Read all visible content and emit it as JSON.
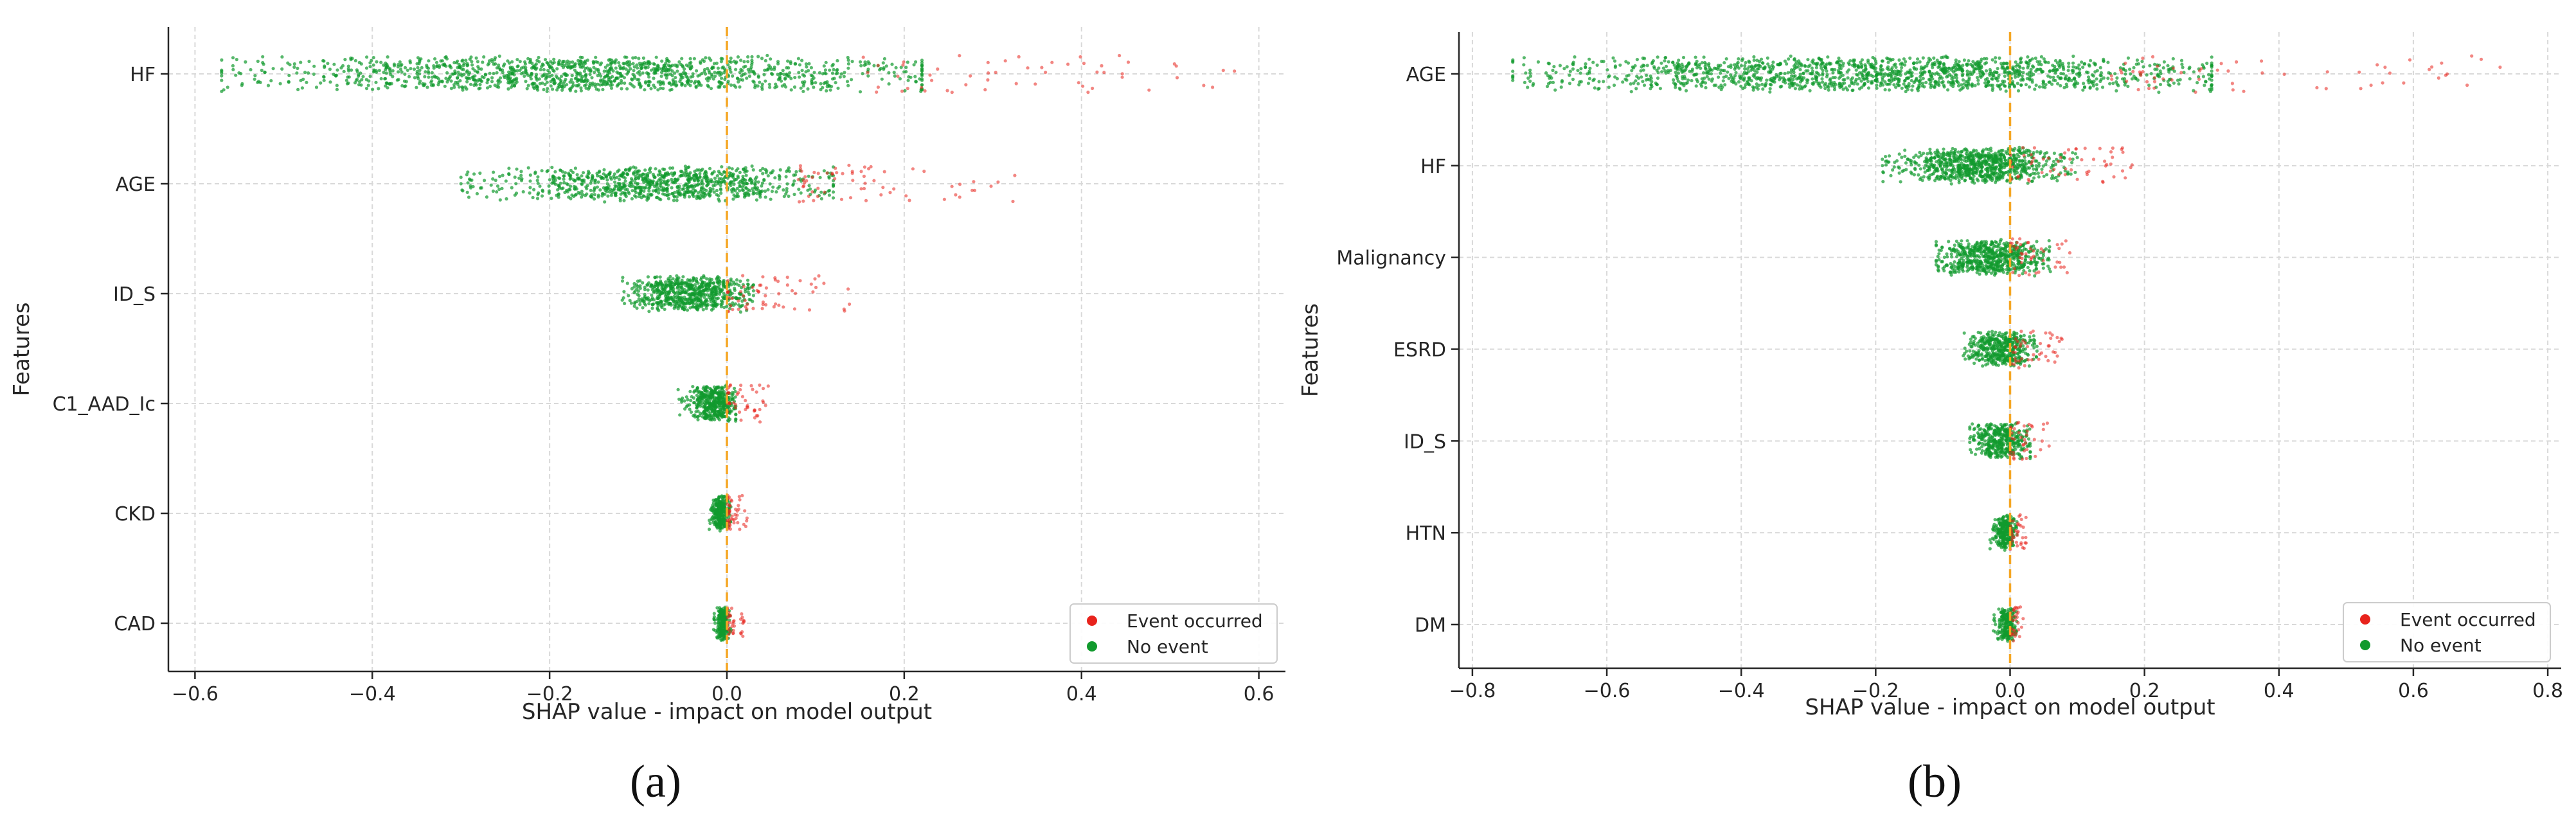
{
  "chart_data": [
    {
      "type": "scatter",
      "subtype": "shap-beeswarm",
      "panel_label": "(a)",
      "xlabel": "SHAP value - impact on model output",
      "ylabel": "Features",
      "xlim": [
        -0.63,
        0.63
      ],
      "xticks": [
        -0.6,
        -0.4,
        -0.2,
        0.0,
        0.2,
        0.4,
        0.6
      ],
      "xtick_labels": [
        "−0.6",
        "−0.4",
        "−0.2",
        "0.0",
        "0.2",
        "0.4",
        "0.6"
      ],
      "grid": true,
      "zero_line": true,
      "legend_position": "bottom-right",
      "legend": [
        {
          "label": "Event occurred",
          "color": "#e8231c"
        },
        {
          "label": "No event",
          "color": "#119a2d"
        }
      ],
      "features": [
        {
          "name": "HF",
          "green_range": [
            -0.57,
            0.22
          ],
          "green_core": [
            -0.45,
            0.13
          ],
          "red_range": [
            0.15,
            0.59
          ]
        },
        {
          "name": "AGE",
          "green_range": [
            -0.3,
            0.12
          ],
          "green_core": [
            -0.22,
            0.06
          ],
          "red_range": [
            0.08,
            0.33
          ]
        },
        {
          "name": "ID_S",
          "green_range": [
            -0.12,
            0.03
          ],
          "green_core": [
            -0.09,
            0.01
          ],
          "red_range": [
            0.0,
            0.14
          ]
        },
        {
          "name": "C1_AAD_Ic",
          "green_range": [
            -0.055,
            0.01
          ],
          "green_core": [
            -0.035,
            0.005
          ],
          "red_range": [
            0.0,
            0.05
          ]
        },
        {
          "name": "CKD",
          "green_range": [
            -0.02,
            0.005
          ],
          "green_core": [
            -0.015,
            0.0
          ],
          "red_range": [
            0.0,
            0.025
          ]
        },
        {
          "name": "CAD",
          "green_range": [
            -0.015,
            0.005
          ],
          "green_core": [
            -0.01,
            0.0
          ],
          "red_range": [
            0.0,
            0.02
          ]
        }
      ]
    },
    {
      "type": "scatter",
      "subtype": "shap-beeswarm",
      "panel_label": "(b)",
      "xlabel": "SHAP value - impact on model output",
      "ylabel": "Features",
      "xlim": [
        -0.82,
        0.82
      ],
      "xticks": [
        -0.8,
        -0.6,
        -0.4,
        -0.2,
        0.0,
        0.2,
        0.4,
        0.6,
        0.8
      ],
      "xtick_labels": [
        "−0.8",
        "−0.6",
        "−0.4",
        "−0.2",
        "0.0",
        "0.2",
        "0.4",
        "0.6",
        "0.8"
      ],
      "grid": true,
      "zero_line": true,
      "legend_position": "bottom-right",
      "legend": [
        {
          "label": "Event occurred",
          "color": "#e8231c"
        },
        {
          "label": "No event",
          "color": "#119a2d"
        }
      ],
      "features": [
        {
          "name": "AGE",
          "green_range": [
            -0.74,
            0.3
          ],
          "green_core": [
            -0.58,
            0.18
          ],
          "red_range": [
            0.15,
            0.75
          ]
        },
        {
          "name": "HF",
          "green_range": [
            -0.19,
            0.1
          ],
          "green_core": [
            -0.14,
            0.04
          ],
          "red_range": [
            0.0,
            0.19
          ]
        },
        {
          "name": "Malignancy",
          "green_range": [
            -0.11,
            0.06
          ],
          "green_core": [
            -0.09,
            0.03
          ],
          "red_range": [
            0.0,
            0.09
          ]
        },
        {
          "name": "ESRD",
          "green_range": [
            -0.07,
            0.04
          ],
          "green_core": [
            -0.05,
            0.02
          ],
          "red_range": [
            0.0,
            0.08
          ]
        },
        {
          "name": "ID_S",
          "green_range": [
            -0.06,
            0.03
          ],
          "green_core": [
            -0.05,
            0.02
          ],
          "red_range": [
            0.0,
            0.06
          ]
        },
        {
          "name": "HTN",
          "green_range": [
            -0.03,
            0.01
          ],
          "green_core": [
            -0.02,
            0.005
          ],
          "red_range": [
            0.0,
            0.025
          ]
        },
        {
          "name": "DM",
          "green_range": [
            -0.025,
            0.01
          ],
          "green_core": [
            -0.015,
            0.005
          ],
          "red_range": [
            0.0,
            0.02
          ]
        }
      ]
    }
  ]
}
